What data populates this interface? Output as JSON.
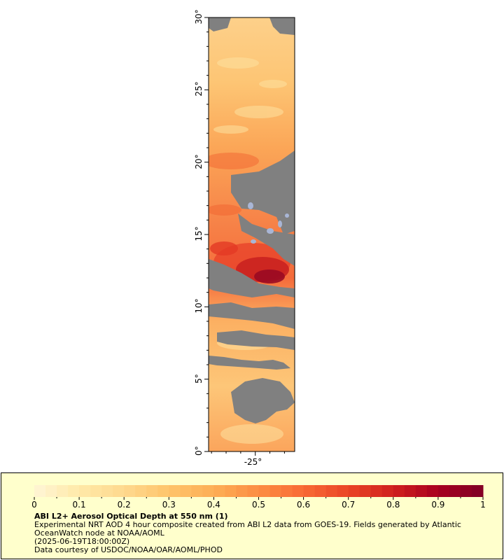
{
  "map": {
    "lat_labels": [
      "0°",
      "5°",
      "10°",
      "15°",
      "20°",
      "25°",
      "30°"
    ],
    "lat_values": [
      0,
      5,
      10,
      15,
      20,
      25,
      30
    ],
    "lon_labels": [
      "-25°"
    ],
    "lon_values": [
      -25
    ],
    "lat_range": [
      0,
      30
    ],
    "colors": {
      "no_data": "#808080",
      "land_or_cloud_blue": "#a9b6d6"
    }
  },
  "legend": {
    "colorbar_min": 0,
    "colorbar_max": 1,
    "tick_labels": [
      "0",
      "0.1",
      "0.2",
      "0.3",
      "0.4",
      "0.5",
      "0.6",
      "0.7",
      "0.8",
      "0.9",
      "1"
    ],
    "colormap": [
      "#fff5d6",
      "#ffe9a8",
      "#fed98e",
      "#fec46b",
      "#fdae55",
      "#fc8d43",
      "#f86a34",
      "#ea4426",
      "#d0201e",
      "#a8001f",
      "#800026"
    ],
    "title": "ABI L2+ Aerosol Optical Depth at 550 nm (1)",
    "line1": "Experimental NRT AOD 4 hour composite created from ABI L2 data from GOES-19. Fields generated by Atlantic OceanWatch node at NOAA/AOML",
    "line2": "(2025-06-19T18:00:00Z)",
    "line3": "Data courtesy of USDOC/NOAA/OAR/AOML/PHOD"
  }
}
